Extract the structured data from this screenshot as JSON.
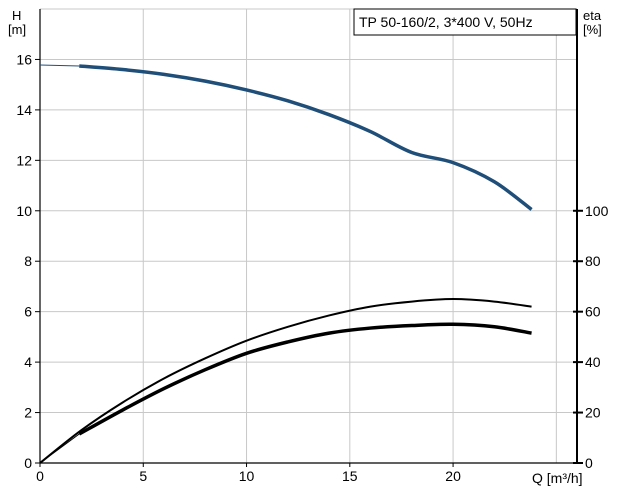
{
  "chart_data": {
    "type": "line",
    "title": "TP 50-160/2, 3*400 V, 50Hz",
    "xlabel": "Q [m³/h]",
    "ylabel_left_top": "H",
    "ylabel_left_bottom": "[m]",
    "ylabel_right_top": "eta",
    "ylabel_right_bottom": "[%]",
    "xlim": [
      0,
      26
    ],
    "ylim_left": [
      0,
      18
    ],
    "ylim_right": [
      0,
      180
    ],
    "x_ticks": [
      0,
      5,
      10,
      15,
      20
    ],
    "y_left_ticks": [
      0,
      2,
      4,
      6,
      8,
      10,
      12,
      14,
      16
    ],
    "y_right_ticks": [
      0,
      20,
      40,
      60,
      80,
      100
    ],
    "grid": true,
    "series": [
      {
        "id": "head",
        "axis": "left",
        "color": "#1f4e79",
        "extrapolated": {
          "x": [
            0,
            1.9
          ],
          "y": [
            15.78,
            15.74
          ]
        },
        "x": [
          1.9,
          4,
          6,
          8,
          10,
          12,
          14,
          16,
          18,
          20,
          22,
          23.8
        ],
        "y": [
          15.74,
          15.6,
          15.41,
          15.14,
          14.79,
          14.36,
          13.81,
          13.14,
          12.31,
          11.91,
          11.15,
          10.05
        ]
      },
      {
        "id": "efficiency-upper",
        "axis": "right",
        "color": "#000000",
        "x": [
          0,
          2,
          4,
          6,
          8,
          10,
          12,
          14,
          16,
          18,
          20,
          22,
          23.8
        ],
        "y": [
          0,
          13,
          24,
          33.5,
          41.5,
          48.5,
          54,
          58.5,
          62,
          64,
          65,
          64,
          62
        ]
      },
      {
        "id": "efficiency-lower",
        "axis": "right",
        "color": "#000000",
        "extrapolated": {
          "x": [
            0,
            1.9
          ],
          "y": [
            0,
            11.5
          ]
        },
        "x": [
          1.9,
          4,
          6,
          8,
          10,
          12,
          14,
          16,
          18,
          20,
          22,
          23.8
        ],
        "y": [
          11.5,
          21,
          29.5,
          37,
          43.5,
          48,
          51.5,
          53.5,
          54.5,
          55,
          54,
          51.5
        ]
      }
    ]
  }
}
